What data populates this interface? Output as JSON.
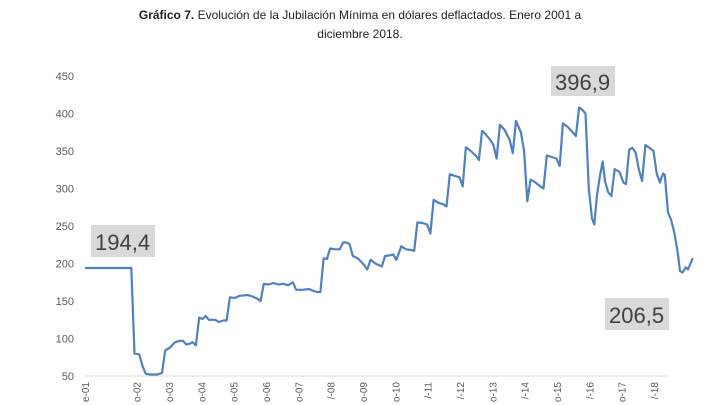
{
  "title": {
    "prefix": "Gráfico 7.",
    "line1": "Evolución de la Jubilación Mínima en dólares deflactados. Enero 2001 a",
    "line2": "diciembre 2018."
  },
  "chart_data": {
    "type": "line",
    "title": "Gráfico 7. Evolución de la Jubilación Mínima en dólares deflactados. Enero 2001 a diciembre 2018.",
    "xlabel": "",
    "ylabel": "",
    "ylim": [
      50,
      450
    ],
    "yticks": [
      50,
      100,
      150,
      200,
      250,
      300,
      350,
      400,
      450
    ],
    "xticks": [
      {
        "label": "e-01",
        "t": 0
      },
      {
        "label": "o-02",
        "t": 1.6
      },
      {
        "label": "o-03",
        "t": 2.6
      },
      {
        "label": "o-04",
        "t": 3.6
      },
      {
        "label": "o-05",
        "t": 4.6
      },
      {
        "label": "o-06",
        "t": 5.6
      },
      {
        "label": "o-07",
        "t": 6.6
      },
      {
        "label": "/-08",
        "t": 7.6
      },
      {
        "label": "o-09",
        "t": 8.6
      },
      {
        "label": "o-10",
        "t": 9.6
      },
      {
        "label": "/-11",
        "t": 10.6
      },
      {
        "label": "/-12",
        "t": 11.6
      },
      {
        "label": "o-13",
        "t": 12.6
      },
      {
        "label": "/-14",
        "t": 13.6
      },
      {
        "label": "o-15",
        "t": 14.6
      },
      {
        "label": "/-16",
        "t": 15.6
      },
      {
        "label": "o-17",
        "t": 16.6
      },
      {
        "label": "/-18",
        "t": 17.6
      }
    ],
    "x_range": [
      0,
      18
    ],
    "grid": false,
    "series": [
      {
        "name": "",
        "color": "#4f81bd",
        "points": [
          [
            0.0,
            194
          ],
          [
            1.4,
            194
          ],
          [
            1.5,
            80
          ],
          [
            1.65,
            79
          ],
          [
            1.75,
            63
          ],
          [
            1.85,
            53
          ],
          [
            2.0,
            52
          ],
          [
            2.2,
            52
          ],
          [
            2.35,
            54
          ],
          [
            2.45,
            84
          ],
          [
            2.6,
            88
          ],
          [
            2.75,
            95
          ],
          [
            2.9,
            97
          ],
          [
            3.0,
            97
          ],
          [
            3.1,
            92
          ],
          [
            3.2,
            93
          ],
          [
            3.3,
            95
          ],
          [
            3.4,
            91
          ],
          [
            3.5,
            128
          ],
          [
            3.6,
            126
          ],
          [
            3.7,
            130
          ],
          [
            3.8,
            125
          ],
          [
            4.0,
            125
          ],
          [
            4.1,
            122
          ],
          [
            4.25,
            124
          ],
          [
            4.35,
            124
          ],
          [
            4.45,
            155
          ],
          [
            4.6,
            154
          ],
          [
            4.75,
            157
          ],
          [
            5.0,
            158
          ],
          [
            5.15,
            156
          ],
          [
            5.3,
            153
          ],
          [
            5.4,
            150
          ],
          [
            5.5,
            173
          ],
          [
            5.65,
            172
          ],
          [
            5.8,
            174
          ],
          [
            5.95,
            172
          ],
          [
            6.1,
            173
          ],
          [
            6.25,
            171
          ],
          [
            6.4,
            175
          ],
          [
            6.5,
            165
          ],
          [
            6.7,
            165
          ],
          [
            6.9,
            166
          ],
          [
            7.0,
            164
          ],
          [
            7.15,
            162
          ],
          [
            7.25,
            162
          ],
          [
            7.35,
            207
          ],
          [
            7.45,
            206
          ],
          [
            7.55,
            220
          ],
          [
            7.7,
            219
          ],
          [
            7.85,
            219
          ],
          [
            7.95,
            228
          ],
          [
            8.05,
            228
          ],
          [
            8.15,
            226
          ],
          [
            8.25,
            210
          ],
          [
            8.4,
            207
          ],
          [
            8.5,
            203
          ],
          [
            8.6,
            198
          ],
          [
            8.7,
            192
          ],
          [
            8.8,
            205
          ],
          [
            8.95,
            200
          ],
          [
            9.05,
            198
          ],
          [
            9.15,
            196
          ],
          [
            9.25,
            210
          ],
          [
            9.4,
            211
          ],
          [
            9.5,
            212
          ],
          [
            9.6,
            205
          ],
          [
            9.75,
            223
          ],
          [
            9.9,
            219
          ],
          [
            10.05,
            218
          ],
          [
            10.15,
            217
          ],
          [
            10.25,
            255
          ],
          [
            10.4,
            254
          ],
          [
            10.55,
            252
          ],
          [
            10.65,
            240
          ],
          [
            10.75,
            285
          ],
          [
            10.9,
            281
          ],
          [
            11.05,
            279
          ],
          [
            11.15,
            276
          ],
          [
            11.25,
            319
          ],
          [
            11.4,
            317
          ],
          [
            11.55,
            315
          ],
          [
            11.65,
            303
          ],
          [
            11.75,
            355
          ],
          [
            11.9,
            350
          ],
          [
            12.05,
            344
          ],
          [
            12.15,
            338
          ],
          [
            12.25,
            377
          ],
          [
            12.35,
            373
          ],
          [
            12.5,
            365
          ],
          [
            12.6,
            358
          ],
          [
            12.7,
            340
          ],
          [
            12.8,
            385
          ],
          [
            12.95,
            378
          ],
          [
            13.1,
            365
          ],
          [
            13.2,
            347
          ],
          [
            13.3,
            390
          ],
          [
            13.45,
            375
          ],
          [
            13.55,
            350
          ],
          [
            13.65,
            283
          ],
          [
            13.75,
            312
          ],
          [
            13.9,
            308
          ],
          [
            14.05,
            303
          ],
          [
            14.15,
            300
          ],
          [
            14.25,
            344
          ],
          [
            14.4,
            342
          ],
          [
            14.55,
            340
          ],
          [
            14.65,
            330
          ],
          [
            14.75,
            387
          ],
          [
            14.9,
            382
          ],
          [
            15.05,
            375
          ],
          [
            15.15,
            370
          ],
          [
            15.25,
            408
          ],
          [
            15.35,
            405
          ],
          [
            15.45,
            400
          ],
          [
            15.55,
            300
          ],
          [
            15.65,
            260
          ],
          [
            15.72,
            252
          ],
          [
            15.8,
            290
          ],
          [
            15.9,
            318
          ],
          [
            15.98,
            336
          ],
          [
            16.05,
            310
          ],
          [
            16.15,
            295
          ],
          [
            16.25,
            290
          ],
          [
            16.35,
            326
          ],
          [
            16.5,
            322
          ],
          [
            16.62,
            308
          ],
          [
            16.7,
            306
          ],
          [
            16.8,
            352
          ],
          [
            16.9,
            354
          ],
          [
            17.0,
            348
          ],
          [
            17.1,
            325
          ],
          [
            17.2,
            310
          ],
          [
            17.3,
            358
          ],
          [
            17.4,
            355
          ],
          [
            17.55,
            350
          ],
          [
            17.65,
            320
          ],
          [
            17.75,
            308
          ],
          [
            17.85,
            320
          ],
          [
            17.9,
            318
          ],
          [
            18.0,
            268
          ],
          [
            18.1,
            258
          ],
          [
            18.2,
            240
          ],
          [
            18.3,
            215
          ],
          [
            18.37,
            190
          ],
          [
            18.45,
            188
          ],
          [
            18.55,
            195
          ],
          [
            18.62,
            192
          ],
          [
            18.75,
            206
          ]
        ]
      }
    ],
    "annotations": [
      {
        "text": "194,4"
      },
      {
        "text": "396,9"
      },
      {
        "text": "206,5"
      }
    ]
  }
}
